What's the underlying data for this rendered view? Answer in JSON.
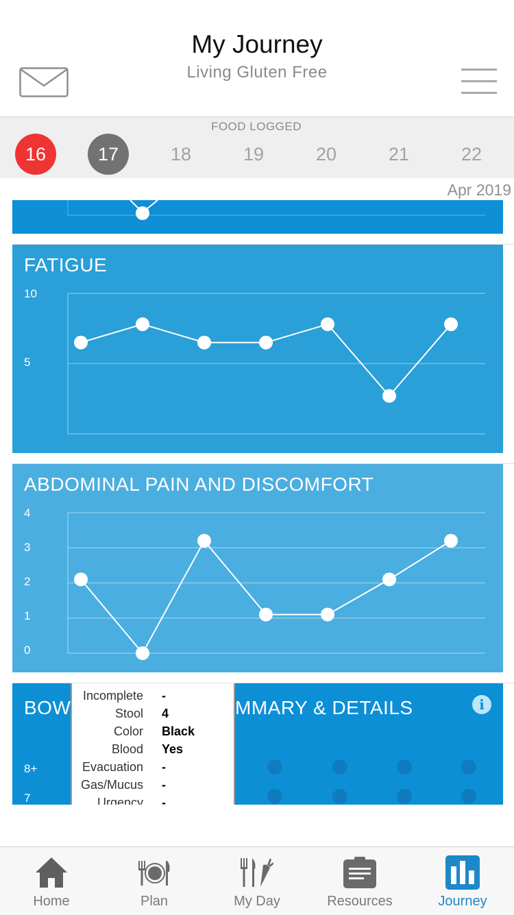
{
  "header": {
    "title": "My Journey",
    "subtitle": "Living Gluten Free",
    "mail_icon": "envelope-icon",
    "menu_icon": "hamburger-menu-icon"
  },
  "date_bar": {
    "label": "FOOD LOGGED",
    "days": [
      {
        "num": "16",
        "state": "logged-red"
      },
      {
        "num": "17",
        "state": "logged-gray"
      },
      {
        "num": "18",
        "state": "none"
      },
      {
        "num": "19",
        "state": "none"
      },
      {
        "num": "20",
        "state": "none"
      },
      {
        "num": "21",
        "state": "none"
      },
      {
        "num": "22",
        "state": "none"
      }
    ],
    "month": "Apr 2019"
  },
  "colors": {
    "fatigue_panel": "#2a9fd8",
    "abdominal_panel": "#4aaee0",
    "bowel_panel": "#0d8fd6",
    "top_panel": "#0e8fd6",
    "today_red": "#ef3434",
    "active_tab": "#1e88c8"
  },
  "chart_data": [
    {
      "type": "line",
      "title": "FATIGUE",
      "x": [
        "16",
        "17",
        "18",
        "19",
        "20",
        "21",
        "22"
      ],
      "values": [
        6.5,
        7.8,
        6.5,
        6.5,
        7.8,
        2.7,
        7.8
      ],
      "yticks": [
        "10",
        "5"
      ],
      "ylim": [
        0,
        10
      ],
      "grid": true
    },
    {
      "type": "line",
      "title": "ABDOMINAL PAIN AND DISCOMFORT",
      "x": [
        "16",
        "17",
        "18",
        "19",
        "20",
        "21",
        "22"
      ],
      "values": [
        2.1,
        0,
        3.2,
        1.1,
        1.1,
        2.1,
        3.2
      ],
      "yticks": [
        "4",
        "3",
        "2",
        "1",
        "0"
      ],
      "ylim": [
        0,
        4
      ],
      "grid": true
    }
  ],
  "bowel": {
    "title_left": "BOW",
    "title_right": "MMARY & DETAILS",
    "info_icon": "info-icon",
    "yticks": [
      "8+",
      "7"
    ],
    "popup": [
      {
        "label": "Incomplete",
        "value": "-"
      },
      {
        "label": "Stool",
        "value": "4"
      },
      {
        "label": "Color",
        "value": "Black"
      },
      {
        "label": "Blood",
        "value": "Yes"
      },
      {
        "label": "Evacuation",
        "value": "-"
      },
      {
        "label": "Gas/Mucus",
        "value": "-"
      },
      {
        "label": "Urgency",
        "value": "-"
      }
    ]
  },
  "tabs": [
    {
      "label": "Home",
      "icon": "home-icon",
      "active": false
    },
    {
      "label": "Plan",
      "icon": "plate-cutlery-icon",
      "active": false
    },
    {
      "label": "My Day",
      "icon": "utensils-carrot-icon",
      "active": false
    },
    {
      "label": "Resources",
      "icon": "clipboard-icon",
      "active": false
    },
    {
      "label": "Journey",
      "icon": "bar-chart-icon",
      "active": true
    }
  ]
}
